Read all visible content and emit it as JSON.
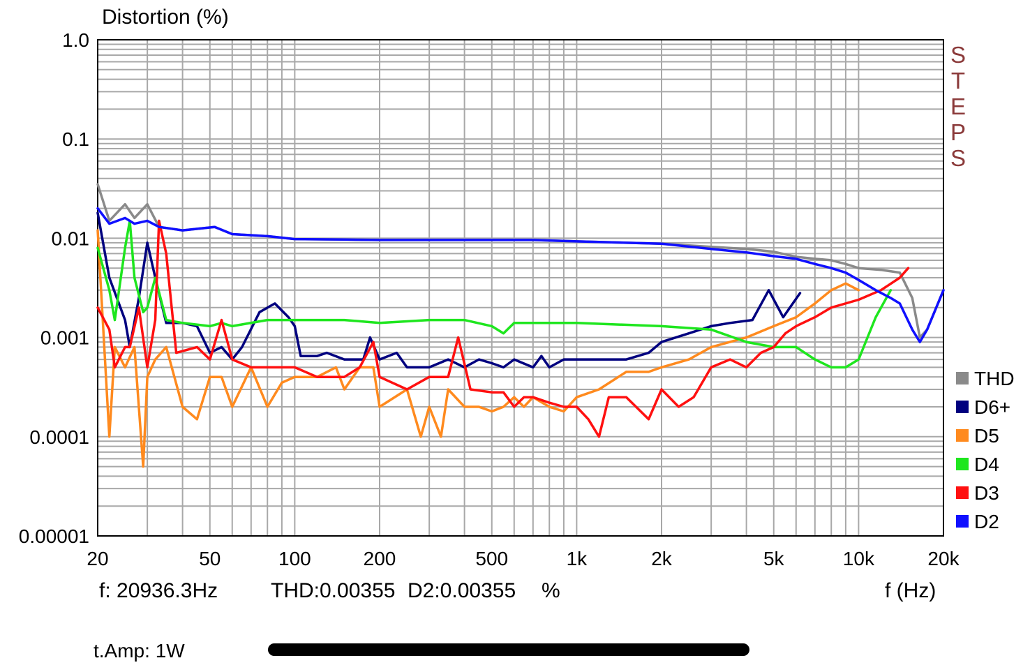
{
  "title": "Distortion (%)",
  "brand": "STEPS",
  "readout": {
    "frequency": "f: 20936.3Hz",
    "thd": "THD:0.00355",
    "d2": "D2:0.00355",
    "unit": "%"
  },
  "x_unit_label": "f (Hz)",
  "footer": "t.Amp: 1W",
  "colors": {
    "grid": "#a8a8a8",
    "brand": "#8b3a3a",
    "THD": "#8a8a8a",
    "D6+": "#00007f",
    "D5": "#ff8a1e",
    "D4": "#1ee61e",
    "D3": "#ff1010",
    "D2": "#1010ff"
  },
  "chart_data": {
    "type": "line",
    "xlabel": "f (Hz)",
    "ylabel": "Distortion (%)",
    "xscale": "log",
    "yscale": "log",
    "xlim": [
      20,
      20000
    ],
    "ylim": [
      1e-05,
      1.0
    ],
    "grid": true,
    "legend_position": "right",
    "x_ticks": [
      {
        "value": 20,
        "label": "20"
      },
      {
        "value": 50,
        "label": "50"
      },
      {
        "value": 100,
        "label": "100"
      },
      {
        "value": 200,
        "label": "200"
      },
      {
        "value": 500,
        "label": "500"
      },
      {
        "value": 1000,
        "label": "1k"
      },
      {
        "value": 2000,
        "label": "2k"
      },
      {
        "value": 5000,
        "label": "5k"
      },
      {
        "value": 10000,
        "label": "10k"
      },
      {
        "value": 20000,
        "label": "20k"
      }
    ],
    "y_ticks": [
      {
        "value": 1.0,
        "label": "1.0"
      },
      {
        "value": 0.1,
        "label": "0.1"
      },
      {
        "value": 0.01,
        "label": "0.01"
      },
      {
        "value": 0.001,
        "label": "0.001"
      },
      {
        "value": 0.0001,
        "label": "0.0001"
      },
      {
        "value": 1e-05,
        "label": "0.00001"
      }
    ],
    "series": [
      {
        "name": "THD",
        "color": "#8a8a8a",
        "points": [
          [
            20,
            0.035
          ],
          [
            22,
            0.015
          ],
          [
            25,
            0.022
          ],
          [
            27,
            0.016
          ],
          [
            30,
            0.022
          ],
          [
            33,
            0.013
          ],
          [
            40,
            0.012
          ],
          [
            52,
            0.013
          ],
          [
            60,
            0.011
          ],
          [
            80,
            0.0105
          ],
          [
            100,
            0.0098
          ],
          [
            150,
            0.0097
          ],
          [
            200,
            0.0096
          ],
          [
            400,
            0.0096
          ],
          [
            700,
            0.0096
          ],
          [
            1000,
            0.0093
          ],
          [
            2000,
            0.0088
          ],
          [
            3000,
            0.0082
          ],
          [
            4000,
            0.0078
          ],
          [
            5000,
            0.0073
          ],
          [
            6000,
            0.0065
          ],
          [
            7000,
            0.0062
          ],
          [
            8000,
            0.006
          ],
          [
            9000,
            0.0055
          ],
          [
            10000,
            0.005
          ],
          [
            12000,
            0.0048
          ],
          [
            14000,
            0.0045
          ],
          [
            15500,
            0.0025
          ],
          [
            16500,
            0.001
          ],
          [
            17500,
            0.0012
          ],
          [
            20000,
            0.003
          ]
        ]
      },
      {
        "name": "D6+",
        "color": "#00007f",
        "points": [
          [
            20,
            0.018
          ],
          [
            22,
            0.004
          ],
          [
            25,
            0.0015
          ],
          [
            26,
            0.0008
          ],
          [
            28,
            0.0025
          ],
          [
            30,
            0.009
          ],
          [
            32,
            0.004
          ],
          [
            35,
            0.0014
          ],
          [
            40,
            0.0014
          ],
          [
            45,
            0.0013
          ],
          [
            50,
            0.0007
          ],
          [
            55,
            0.0008
          ],
          [
            60,
            0.0006
          ],
          [
            65,
            0.0008
          ],
          [
            75,
            0.0018
          ],
          [
            85,
            0.0022
          ],
          [
            95,
            0.0016
          ],
          [
            100,
            0.0013
          ],
          [
            105,
            0.00065
          ],
          [
            120,
            0.00065
          ],
          [
            130,
            0.0007
          ],
          [
            150,
            0.0006
          ],
          [
            175,
            0.0006
          ],
          [
            185,
            0.001
          ],
          [
            200,
            0.0006
          ],
          [
            230,
            0.0007
          ],
          [
            250,
            0.0005
          ],
          [
            300,
            0.0005
          ],
          [
            350,
            0.0006
          ],
          [
            400,
            0.0005
          ],
          [
            450,
            0.0006
          ],
          [
            500,
            0.00055
          ],
          [
            550,
            0.0005
          ],
          [
            600,
            0.0006
          ],
          [
            700,
            0.0005
          ],
          [
            750,
            0.00065
          ],
          [
            800,
            0.0005
          ],
          [
            900,
            0.0006
          ],
          [
            1000,
            0.0006
          ],
          [
            1200,
            0.0006
          ],
          [
            1500,
            0.0006
          ],
          [
            1800,
            0.0007
          ],
          [
            2000,
            0.0009
          ],
          [
            2500,
            0.0011
          ],
          [
            3000,
            0.0013
          ],
          [
            3500,
            0.0014
          ],
          [
            4200,
            0.0015
          ],
          [
            4800,
            0.003
          ],
          [
            5400,
            0.0016
          ],
          [
            6200,
            0.0028
          ]
        ]
      },
      {
        "name": "D5",
        "color": "#ff8a1e",
        "points": [
          [
            20,
            0.012
          ],
          [
            22,
            0.0001
          ],
          [
            23,
            0.0008
          ],
          [
            25,
            0.0005
          ],
          [
            27,
            0.0008
          ],
          [
            29,
            5e-05
          ],
          [
            30,
            0.0004
          ],
          [
            32,
            0.0006
          ],
          [
            35,
            0.0008
          ],
          [
            40,
            0.0002
          ],
          [
            45,
            0.00015
          ],
          [
            50,
            0.0004
          ],
          [
            55,
            0.0004
          ],
          [
            60,
            0.0002
          ],
          [
            70,
            0.0005
          ],
          [
            80,
            0.0002
          ],
          [
            90,
            0.00035
          ],
          [
            100,
            0.0004
          ],
          [
            120,
            0.0004
          ],
          [
            140,
            0.0005
          ],
          [
            150,
            0.0003
          ],
          [
            170,
            0.0005
          ],
          [
            190,
            0.0005
          ],
          [
            200,
            0.0002
          ],
          [
            250,
            0.0003
          ],
          [
            280,
            0.0001
          ],
          [
            300,
            0.0002
          ],
          [
            330,
            0.0001
          ],
          [
            350,
            0.0003
          ],
          [
            400,
            0.0002
          ],
          [
            450,
            0.0002
          ],
          [
            500,
            0.00018
          ],
          [
            550,
            0.0002
          ],
          [
            600,
            0.00025
          ],
          [
            650,
            0.0002
          ],
          [
            700,
            0.00025
          ],
          [
            800,
            0.0002
          ],
          [
            900,
            0.00018
          ],
          [
            1000,
            0.00025
          ],
          [
            1200,
            0.0003
          ],
          [
            1500,
            0.00045
          ],
          [
            1800,
            0.00045
          ],
          [
            2000,
            0.0005
          ],
          [
            2500,
            0.0006
          ],
          [
            3000,
            0.0008
          ],
          [
            4000,
            0.001
          ],
          [
            5000,
            0.0013
          ],
          [
            6000,
            0.0016
          ],
          [
            7000,
            0.0022
          ],
          [
            8000,
            0.003
          ],
          [
            9000,
            0.0035
          ],
          [
            10000,
            0.003
          ]
        ]
      },
      {
        "name": "D4",
        "color": "#1ee61e",
        "points": [
          [
            20,
            0.008
          ],
          [
            22,
            0.003
          ],
          [
            23,
            0.0015
          ],
          [
            25,
            0.008
          ],
          [
            26,
            0.015
          ],
          [
            27,
            0.004
          ],
          [
            29,
            0.0018
          ],
          [
            30,
            0.002
          ],
          [
            32,
            0.004
          ],
          [
            35,
            0.0015
          ],
          [
            40,
            0.0014
          ],
          [
            50,
            0.0013
          ],
          [
            55,
            0.0014
          ],
          [
            60,
            0.0013
          ],
          [
            80,
            0.0015
          ],
          [
            100,
            0.0015
          ],
          [
            150,
            0.0015
          ],
          [
            200,
            0.0014
          ],
          [
            300,
            0.0015
          ],
          [
            400,
            0.0015
          ],
          [
            500,
            0.0013
          ],
          [
            550,
            0.0011
          ],
          [
            600,
            0.0014
          ],
          [
            800,
            0.0014
          ],
          [
            1000,
            0.0014
          ],
          [
            2000,
            0.0013
          ],
          [
            3000,
            0.0012
          ],
          [
            4000,
            0.0009
          ],
          [
            5000,
            0.0008
          ],
          [
            6000,
            0.0008
          ],
          [
            7000,
            0.0006
          ],
          [
            8000,
            0.0005
          ],
          [
            9000,
            0.0005
          ],
          [
            10000,
            0.0006
          ],
          [
            11500,
            0.0016
          ],
          [
            13000,
            0.003
          ]
        ]
      },
      {
        "name": "D3",
        "color": "#ff1010",
        "points": [
          [
            20,
            0.002
          ],
          [
            22,
            0.0012
          ],
          [
            23,
            0.0005
          ],
          [
            25,
            0.0008
          ],
          [
            26,
            0.0008
          ],
          [
            28,
            0.002
          ],
          [
            30,
            0.0005
          ],
          [
            32,
            0.0015
          ],
          [
            33,
            0.015
          ],
          [
            35,
            0.007
          ],
          [
            38,
            0.0007
          ],
          [
            45,
            0.0008
          ],
          [
            50,
            0.0006
          ],
          [
            55,
            0.0015
          ],
          [
            60,
            0.0006
          ],
          [
            70,
            0.0005
          ],
          [
            80,
            0.0005
          ],
          [
            100,
            0.0005
          ],
          [
            120,
            0.0004
          ],
          [
            150,
            0.0004
          ],
          [
            170,
            0.0005
          ],
          [
            190,
            0.0009
          ],
          [
            200,
            0.0004
          ],
          [
            250,
            0.0003
          ],
          [
            300,
            0.0004
          ],
          [
            350,
            0.0004
          ],
          [
            380,
            0.001
          ],
          [
            420,
            0.0003
          ],
          [
            500,
            0.00028
          ],
          [
            550,
            0.00028
          ],
          [
            600,
            0.0002
          ],
          [
            650,
            0.00025
          ],
          [
            700,
            0.00025
          ],
          [
            800,
            0.00022
          ],
          [
            900,
            0.0002
          ],
          [
            1000,
            0.0002
          ],
          [
            1100,
            0.00015
          ],
          [
            1200,
            0.0001
          ],
          [
            1300,
            0.00025
          ],
          [
            1500,
            0.00025
          ],
          [
            1800,
            0.00015
          ],
          [
            2000,
            0.0003
          ],
          [
            2300,
            0.0002
          ],
          [
            2600,
            0.00025
          ],
          [
            3000,
            0.0005
          ],
          [
            3500,
            0.0006
          ],
          [
            4000,
            0.0005
          ],
          [
            4500,
            0.0007
          ],
          [
            5000,
            0.0008
          ],
          [
            5500,
            0.0011
          ],
          [
            6000,
            0.0013
          ],
          [
            7000,
            0.0016
          ],
          [
            8000,
            0.002
          ],
          [
            10000,
            0.0024
          ],
          [
            12000,
            0.003
          ],
          [
            14000,
            0.004
          ],
          [
            15000,
            0.005
          ]
        ]
      },
      {
        "name": "D2",
        "color": "#1010ff",
        "points": [
          [
            20,
            0.02
          ],
          [
            22,
            0.014
          ],
          [
            25,
            0.016
          ],
          [
            27,
            0.014
          ],
          [
            30,
            0.015
          ],
          [
            33,
            0.013
          ],
          [
            40,
            0.012
          ],
          [
            52,
            0.013
          ],
          [
            60,
            0.011
          ],
          [
            80,
            0.0105
          ],
          [
            100,
            0.0098
          ],
          [
            150,
            0.0097
          ],
          [
            200,
            0.0096
          ],
          [
            400,
            0.0096
          ],
          [
            700,
            0.0096
          ],
          [
            1000,
            0.0093
          ],
          [
            2000,
            0.0088
          ],
          [
            3000,
            0.0078
          ],
          [
            4000,
            0.0072
          ],
          [
            5000,
            0.0066
          ],
          [
            6000,
            0.0062
          ],
          [
            7000,
            0.0055
          ],
          [
            8000,
            0.005
          ],
          [
            9000,
            0.0045
          ],
          [
            10000,
            0.0038
          ],
          [
            11500,
            0.003
          ],
          [
            13000,
            0.0025
          ],
          [
            14000,
            0.0022
          ],
          [
            15500,
            0.0012
          ],
          [
            16500,
            0.0009
          ],
          [
            17500,
            0.0012
          ],
          [
            20000,
            0.003
          ]
        ]
      }
    ]
  }
}
